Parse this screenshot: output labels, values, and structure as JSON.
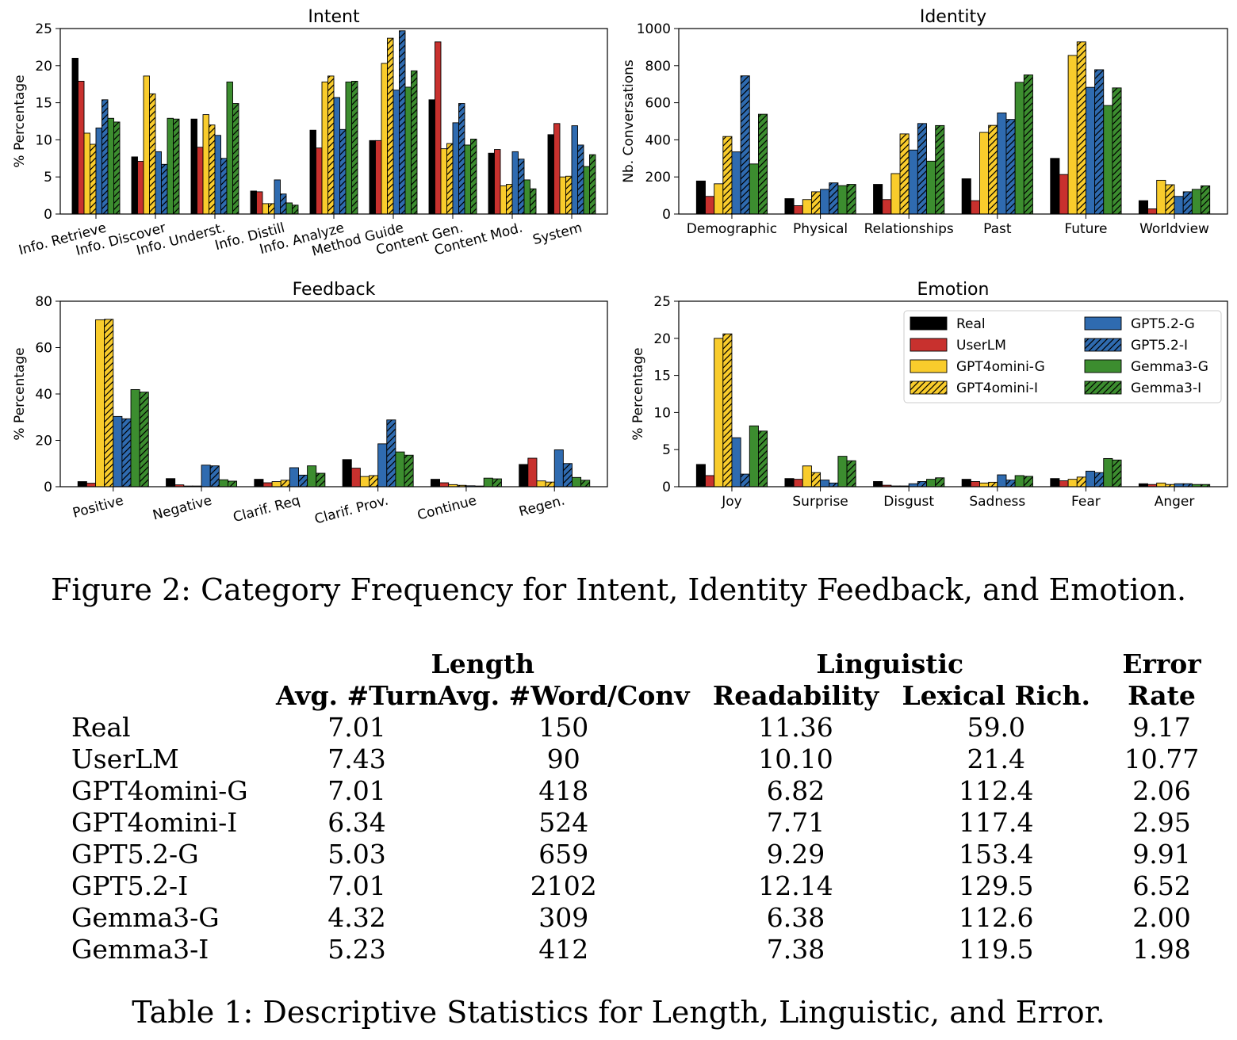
{
  "figure": {
    "caption": "Figure 2: Category Frequency for Intent, Identity Feedback, and Emotion.",
    "legend": [
      {
        "name": "Real",
        "color": "#000000",
        "hatch": false
      },
      {
        "name": "UserLM",
        "color": "#c8312e",
        "hatch": false
      },
      {
        "name": "GPT4omini-G",
        "color": "#f9cc2c",
        "hatch": false
      },
      {
        "name": "GPT4omini-I",
        "color": "#f9cc2c",
        "hatch": true
      },
      {
        "name": "GPT5.2-G",
        "color": "#2f6bb0",
        "hatch": false
      },
      {
        "name": "GPT5.2-I",
        "color": "#2f6bb0",
        "hatch": true
      },
      {
        "name": "Gemma3-G",
        "color": "#3c8d2f",
        "hatch": false
      },
      {
        "name": "Gemma3-I",
        "color": "#3c8d2f",
        "hatch": true
      }
    ]
  },
  "chart_data": [
    {
      "type": "bar",
      "title": "Intent",
      "ylabel": "% Percentage",
      "ylim": [
        0,
        25
      ],
      "yticks": [
        0,
        5,
        10,
        15,
        20,
        25
      ],
      "rotate_xticks": true,
      "categories": [
        "Info. Retrieve",
        "Info. Discover",
        "Info. Underst.",
        "Info. Distill",
        "Info. Analyze",
        "Method Guide",
        "Content Gen.",
        "Content Mod.",
        "System"
      ],
      "series": [
        {
          "name": "Real",
          "values": [
            21.0,
            7.7,
            12.8,
            3.1,
            11.3,
            9.9,
            15.4,
            8.2,
            10.7
          ]
        },
        {
          "name": "UserLM",
          "values": [
            17.9,
            7.1,
            9.0,
            3.0,
            8.9,
            9.9,
            23.2,
            8.7,
            12.2
          ]
        },
        {
          "name": "GPT4omini-G",
          "values": [
            10.9,
            18.6,
            13.4,
            1.4,
            17.8,
            20.3,
            8.8,
            3.8,
            5.0
          ]
        },
        {
          "name": "GPT4omini-I",
          "values": [
            9.4,
            16.2,
            12.0,
            1.4,
            18.6,
            23.7,
            9.5,
            4.0,
            5.1
          ]
        },
        {
          "name": "GPT5.2-G",
          "values": [
            11.6,
            8.4,
            10.6,
            4.6,
            15.7,
            16.7,
            12.3,
            8.4,
            11.9
          ]
        },
        {
          "name": "GPT5.2-I",
          "values": [
            15.4,
            6.7,
            7.5,
            2.7,
            11.4,
            24.7,
            14.9,
            7.4,
            9.3
          ]
        },
        {
          "name": "Gemma3-G",
          "values": [
            12.9,
            12.9,
            17.8,
            1.5,
            17.8,
            17.1,
            9.3,
            4.6,
            6.4
          ]
        },
        {
          "name": "Gemma3-I",
          "values": [
            12.4,
            12.8,
            14.9,
            1.2,
            17.9,
            19.3,
            10.1,
            3.4,
            8.0
          ]
        }
      ]
    },
    {
      "type": "bar",
      "title": "Identity",
      "ylabel": "Nb. Conversations",
      "ylim": [
        0,
        1000
      ],
      "yticks": [
        0,
        200,
        400,
        600,
        800,
        1000
      ],
      "rotate_xticks": false,
      "categories": [
        "Demographic",
        "Physical",
        "Relationships",
        "Past",
        "Future",
        "Worldview"
      ],
      "series": [
        {
          "name": "Real",
          "values": [
            178,
            83,
            160,
            190,
            300,
            72
          ]
        },
        {
          "name": "UserLM",
          "values": [
            95,
            45,
            78,
            72,
            213,
            28
          ]
        },
        {
          "name": "GPT4omini-G",
          "values": [
            163,
            78,
            218,
            440,
            855,
            182
          ]
        },
        {
          "name": "GPT4omini-I",
          "values": [
            418,
            120,
            432,
            478,
            928,
            158
          ]
        },
        {
          "name": "GPT5.2-G",
          "values": [
            335,
            133,
            345,
            545,
            683,
            95
          ]
        },
        {
          "name": "GPT5.2-I",
          "values": [
            745,
            168,
            488,
            510,
            778,
            120
          ]
        },
        {
          "name": "Gemma3-G",
          "values": [
            270,
            153,
            285,
            710,
            585,
            133
          ]
        },
        {
          "name": "Gemma3-I",
          "values": [
            538,
            160,
            477,
            750,
            680,
            152
          ]
        }
      ]
    },
    {
      "type": "bar",
      "title": "Feedback",
      "ylabel": "% Percentage",
      "ylim": [
        0,
        80
      ],
      "yticks": [
        0,
        20,
        40,
        60,
        80
      ],
      "rotate_xticks": true,
      "categories": [
        "Positive",
        "Negative",
        "Clarif. Req",
        "Clarif. Prov.",
        "Continue",
        "Regen."
      ],
      "series": [
        {
          "name": "Real",
          "values": [
            2.2,
            3.5,
            3.2,
            11.7,
            3.2,
            9.6
          ]
        },
        {
          "name": "UserLM",
          "values": [
            1.5,
            0.8,
            1.7,
            8.0,
            1.7,
            12.3
          ]
        },
        {
          "name": "GPT4omini-G",
          "values": [
            72.0,
            0.3,
            2.2,
            4.4,
            0.9,
            2.5
          ]
        },
        {
          "name": "GPT4omini-I",
          "values": [
            72.2,
            0.3,
            2.8,
            4.8,
            0.6,
            2.0
          ]
        },
        {
          "name": "GPT5.2-G",
          "values": [
            30.3,
            9.3,
            8.2,
            18.5,
            0.4,
            15.9
          ]
        },
        {
          "name": "GPT5.2-I",
          "values": [
            29.3,
            9.0,
            5.0,
            28.8,
            0.3,
            10.0
          ]
        },
        {
          "name": "Gemma3-G",
          "values": [
            41.9,
            3.0,
            9.0,
            15.0,
            3.7,
            4.0
          ]
        },
        {
          "name": "Gemma3-I",
          "values": [
            40.8,
            2.4,
            5.8,
            13.6,
            3.4,
            2.8
          ]
        }
      ]
    },
    {
      "type": "bar",
      "title": "Emotion",
      "ylabel": "% Percentage",
      "ylim": [
        0,
        25
      ],
      "yticks": [
        0,
        5,
        10,
        15,
        20,
        25
      ],
      "rotate_xticks": false,
      "legend_position": "upper-right",
      "categories": [
        "Joy",
        "Surprise",
        "Disgust",
        "Sadness",
        "Fear",
        "Anger"
      ],
      "series": [
        {
          "name": "Real",
          "values": [
            3.0,
            1.1,
            0.7,
            1.0,
            1.1,
            0.4
          ]
        },
        {
          "name": "UserLM",
          "values": [
            1.5,
            1.0,
            0.2,
            0.7,
            0.8,
            0.3
          ]
        },
        {
          "name": "GPT4omini-G",
          "values": [
            20.0,
            2.8,
            0.1,
            0.5,
            1.0,
            0.5
          ]
        },
        {
          "name": "GPT4omini-I",
          "values": [
            20.6,
            1.9,
            0.1,
            0.6,
            1.3,
            0.3
          ]
        },
        {
          "name": "GPT5.2-G",
          "values": [
            6.6,
            0.9,
            0.4,
            1.6,
            2.1,
            0.4
          ]
        },
        {
          "name": "GPT5.2-I",
          "values": [
            1.7,
            0.5,
            0.7,
            0.9,
            1.9,
            0.4
          ]
        },
        {
          "name": "Gemma3-G",
          "values": [
            8.2,
            4.1,
            1.0,
            1.5,
            3.8,
            0.3
          ]
        },
        {
          "name": "Gemma3-I",
          "values": [
            7.5,
            3.5,
            1.2,
            1.4,
            3.6,
            0.3
          ]
        }
      ]
    }
  ],
  "table": {
    "caption": "Table 1: Descriptive Statistics for Length, Linguistic, and Error.",
    "group_headers": {
      "length": "Length",
      "linguistic": "Linguistic",
      "error_line1": "Error"
    },
    "col_headers": {
      "turn": "Avg. #Turn",
      "words": "Avg. #Word/Conv",
      "readability": "Readability",
      "lexical": "Lexical Rich.",
      "error_line2": "Rate"
    },
    "rows": [
      {
        "model": "Real",
        "turn": "7.01",
        "words": "150",
        "readability": "11.36",
        "lexical": "59.0",
        "error": "9.17"
      },
      {
        "model": "UserLM",
        "turn": "7.43",
        "words": "90",
        "readability": "10.10",
        "lexical": "21.4",
        "error": "10.77"
      },
      {
        "model": "GPT4omini-G",
        "turn": "7.01",
        "words": "418",
        "readability": "6.82",
        "lexical": "112.4",
        "error": "2.06"
      },
      {
        "model": "GPT4omini-I",
        "turn": "6.34",
        "words": "524",
        "readability": "7.71",
        "lexical": "117.4",
        "error": "2.95"
      },
      {
        "model": "GPT5.2-G",
        "turn": "5.03",
        "words": "659",
        "readability": "9.29",
        "lexical": "153.4",
        "error": "9.91"
      },
      {
        "model": "GPT5.2-I",
        "turn": "7.01",
        "words": "2102",
        "readability": "12.14",
        "lexical": "129.5",
        "error": "6.52"
      },
      {
        "model": "Gemma3-G",
        "turn": "4.32",
        "words": "309",
        "readability": "6.38",
        "lexical": "112.6",
        "error": "2.00"
      },
      {
        "model": "Gemma3-I",
        "turn": "5.23",
        "words": "412",
        "readability": "7.38",
        "lexical": "119.5",
        "error": "1.98"
      }
    ]
  }
}
